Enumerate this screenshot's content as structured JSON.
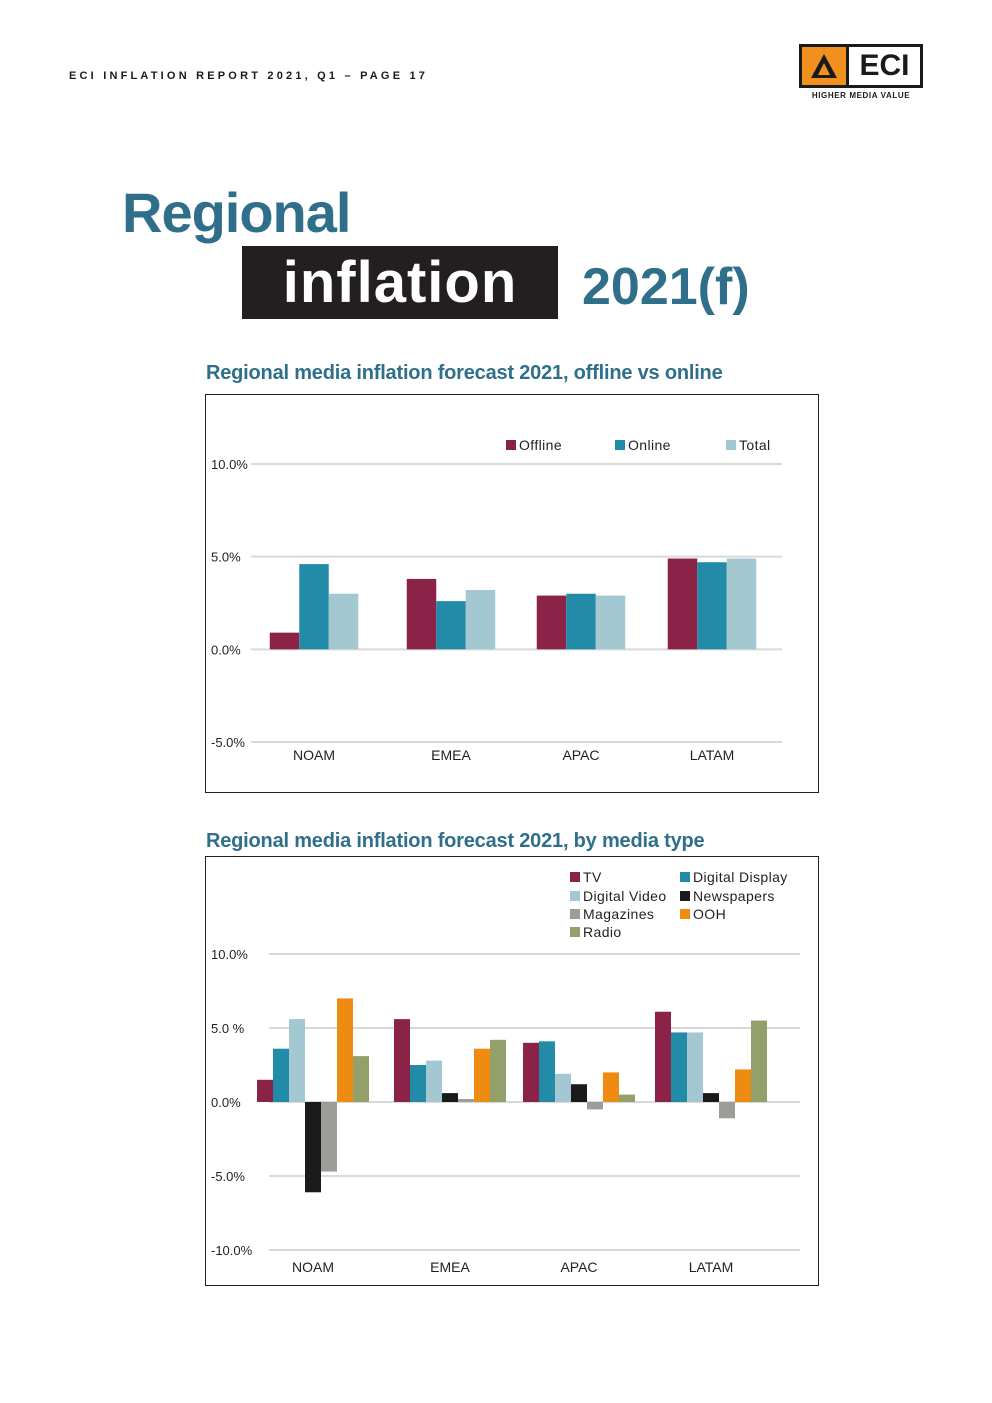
{
  "header": {
    "running_head": "ECI INFLATION REPORT 2021, Q1  – PAGE 17",
    "logo_text": "ECI",
    "logo_tagline": "HIGHER MEDIA VALUE"
  },
  "title": {
    "line1": "Regional",
    "line2": "inflation",
    "line3": "2021(f)"
  },
  "colors": {
    "title": "#2f6f8a",
    "tv_offline": "#8b2248",
    "digital_display_online": "#228ba8",
    "digital_video_total": "#a3c8d2",
    "newspapers": "#1a1a1a",
    "magazines": "#9e9c99",
    "ooh": "#ee8c11",
    "radio": "#93a06a",
    "grid": "#d9d9d9"
  },
  "chart_data": [
    {
      "type": "bar",
      "title": "Regional media inflation forecast 2021, offline vs online",
      "categories": [
        "NOAM",
        "EMEA",
        "APAC",
        "LATAM"
      ],
      "series": [
        {
          "name": "Offline",
          "color": "#8b2248",
          "values": [
            0.9,
            3.8,
            2.9,
            4.9
          ]
        },
        {
          "name": "Online",
          "color": "#228ba8",
          "values": [
            4.6,
            2.6,
            3.0,
            4.7
          ]
        },
        {
          "name": "Total",
          "color": "#a3c8d2",
          "values": [
            3.0,
            3.2,
            2.9,
            4.9
          ]
        }
      ],
      "ylim": [
        -5,
        10
      ],
      "yticks": [
        10,
        5,
        0,
        -5
      ],
      "ytick_labels": [
        "10.0%",
        "5.0%",
        "0.0%",
        "-5.0%"
      ],
      "xlabel": "",
      "ylabel": "",
      "legend": "top-right",
      "grid": true
    },
    {
      "type": "bar",
      "title": "Regional media inflation forecast 2021, by media type",
      "categories": [
        "NOAM",
        "EMEA",
        "APAC",
        "LATAM"
      ],
      "series": [
        {
          "name": "TV",
          "color": "#8b2248",
          "values": [
            1.5,
            5.6,
            4.0,
            6.1
          ]
        },
        {
          "name": "Digital Display",
          "color": "#228ba8",
          "values": [
            3.6,
            2.5,
            4.1,
            4.7
          ]
        },
        {
          "name": "Digital Video",
          "color": "#a3c8d2",
          "values": [
            5.6,
            2.8,
            1.9,
            4.7
          ]
        },
        {
          "name": "Newspapers",
          "color": "#1a1a1a",
          "values": [
            -6.1,
            0.6,
            1.2,
            0.6
          ]
        },
        {
          "name": "Magazines",
          "color": "#9e9c99",
          "values": [
            -4.7,
            0.2,
            -0.5,
            -1.1
          ]
        },
        {
          "name": "OOH",
          "color": "#ee8c11",
          "values": [
            7.0,
            3.6,
            2.0,
            2.2
          ]
        },
        {
          "name": "Radio",
          "color": "#93a06a",
          "values": [
            3.1,
            4.2,
            0.5,
            5.5
          ]
        }
      ],
      "ylim": [
        -10,
        10
      ],
      "yticks": [
        10,
        5,
        0,
        -5,
        -10
      ],
      "ytick_labels": [
        "10.0%",
        "5.0 %",
        "0.0%",
        "-5.0%",
        "-10.0%"
      ],
      "xlabel": "",
      "ylabel": "",
      "legend": "top-right",
      "grid": true
    }
  ]
}
